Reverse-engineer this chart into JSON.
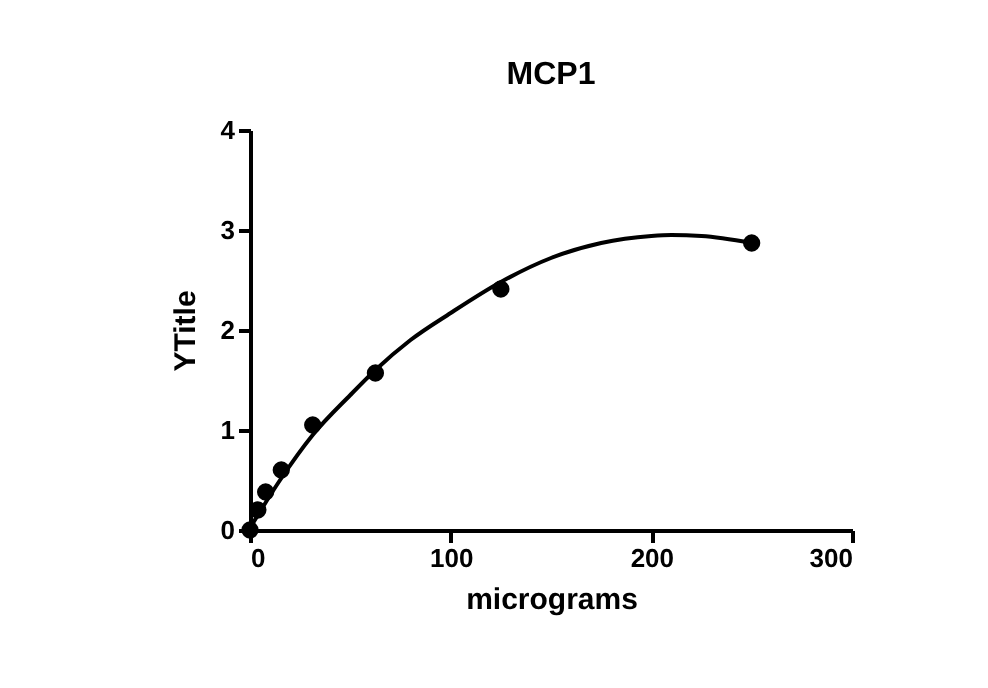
{
  "chart_data": {
    "type": "scatter",
    "title": "MCP1",
    "xlabel": "micrograms",
    "ylabel": "YTitle",
    "xlim": [
      0,
      300
    ],
    "ylim": [
      0,
      4
    ],
    "xticks": [
      0,
      100,
      200,
      300
    ],
    "yticks": [
      0,
      1,
      2,
      3,
      4
    ],
    "grid": false,
    "series": [
      {
        "type": "scatter",
        "color": "#000000",
        "marker": "circle",
        "x": [
          0,
          3.9,
          7.8,
          15.6,
          31.25,
          62.5,
          125,
          250
        ],
        "values": [
          0,
          0.2,
          0.38,
          0.6,
          1.05,
          1.57,
          2.41,
          2.87
        ]
      },
      {
        "type": "line",
        "color": "#000000",
        "marker": "none",
        "line_style": "solid",
        "x": [
          0,
          15,
          31.25,
          50,
          62.5,
          80,
          100,
          125,
          150,
          175,
          200,
          210,
          225,
          250
        ],
        "values": [
          0.02,
          0.5,
          0.95,
          1.35,
          1.6,
          1.9,
          2.17,
          2.48,
          2.72,
          2.87,
          2.94,
          2.95,
          2.94,
          2.87
        ]
      }
    ]
  }
}
